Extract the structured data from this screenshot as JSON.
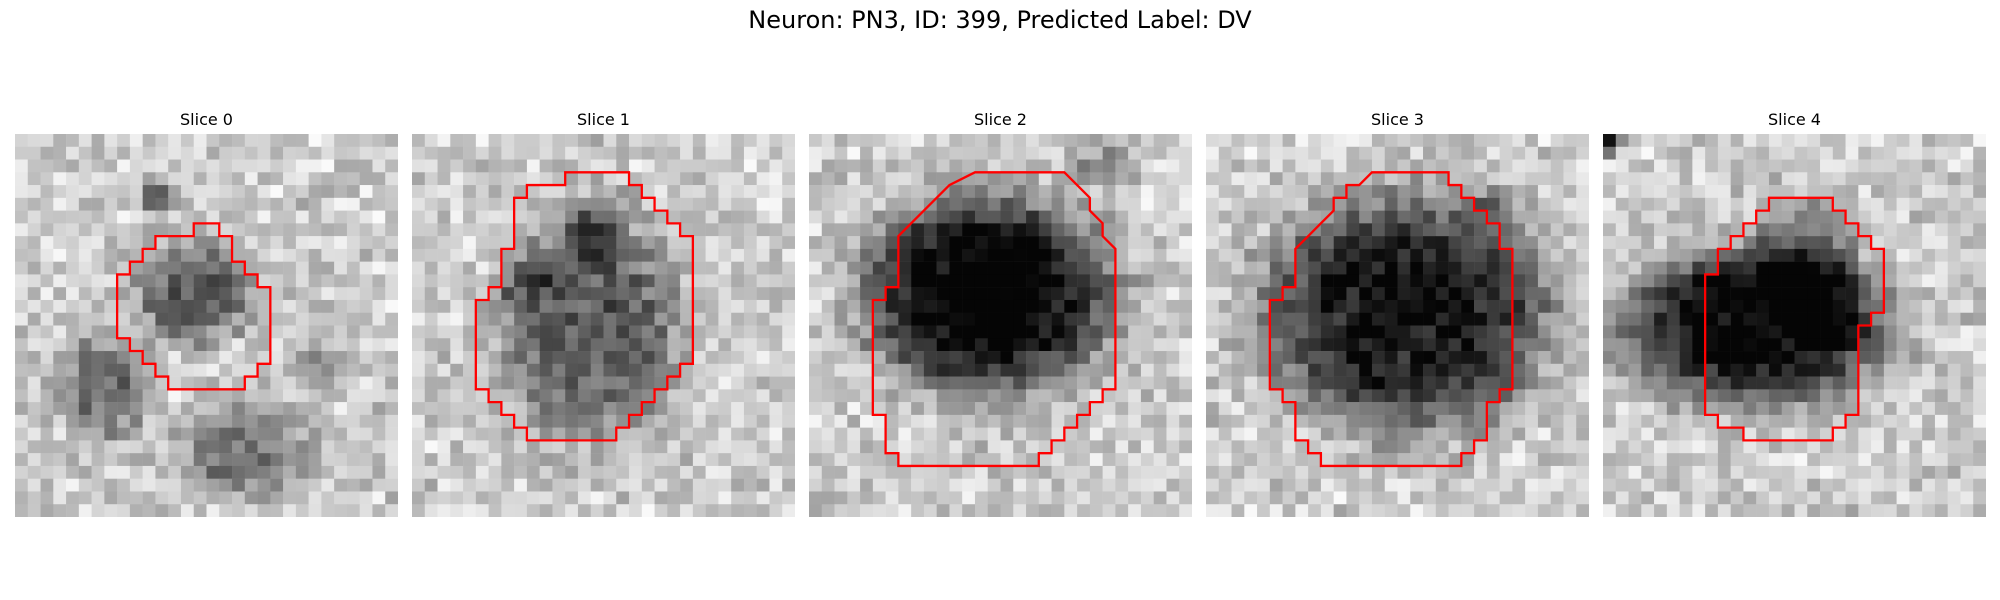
{
  "figure": {
    "title": "Neuron: PN3, ID: 399, Predicted Label: DV"
  },
  "panels": [
    {
      "title": "Slice 0"
    },
    {
      "title": "Slice 1"
    },
    {
      "title": "Slice 2"
    },
    {
      "title": "Slice 3"
    },
    {
      "title": "Slice 4"
    }
  ],
  "colors": {
    "contour": "#ff0000",
    "background": "#ffffff"
  }
}
